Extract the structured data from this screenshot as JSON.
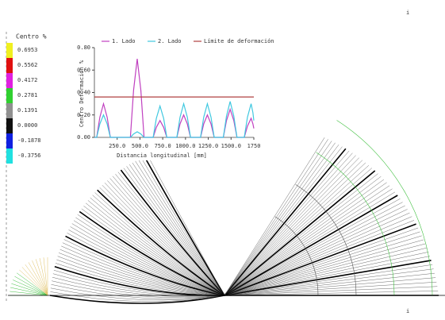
{
  "legend": {
    "title": "Centro %",
    "items": [
      {
        "label": "0.6953",
        "color": "#f0f020"
      },
      {
        "label": "0.5562",
        "color": "#e01010"
      },
      {
        "label": "0.4172",
        "color": "#e020e0"
      },
      {
        "label": "0.2781",
        "color": "#30d030"
      },
      {
        "label": "0.1391",
        "color": "#909090"
      },
      {
        "label": "0.0000",
        "color": "#101010"
      },
      {
        "label": "-0.1878",
        "color": "#1020e0"
      },
      {
        "label": "-0.3756",
        "color": "#20e0e0"
      }
    ]
  },
  "corner_marks": [
    "i",
    "i"
  ],
  "chart_data": {
    "type": "line",
    "xlabel": "Distancia longitudinal [mm]",
    "ylabel": "Centro Deformación %",
    "x": [
      0,
      25,
      60,
      100,
      140,
      175,
      395,
      430,
      470,
      510,
      545,
      645,
      680,
      720,
      760,
      795,
      905,
      940,
      980,
      1020,
      1055,
      1165,
      1200,
      1240,
      1280,
      1315,
      1415,
      1450,
      1490,
      1530,
      1565,
      1645,
      1680,
      1720,
      1740,
      1750
    ],
    "series": [
      {
        "name": "1. Lado",
        "color": "#c040c0",
        "values": [
          0,
          0,
          0.18,
          0.3,
          0.18,
          0,
          0,
          0.42,
          0.7,
          0.42,
          0,
          0,
          0.09,
          0.15,
          0.09,
          0,
          0,
          0.12,
          0.2,
          0.12,
          0,
          0,
          0.12,
          0.2,
          0.12,
          0,
          0,
          0.15,
          0.25,
          0.15,
          0,
          0,
          0.1,
          0.17,
          0.12,
          0.08
        ]
      },
      {
        "name": "2. Lado",
        "color": "#40c8e0",
        "values": [
          0,
          0,
          0.12,
          0.2,
          0.12,
          0,
          0,
          0.03,
          0.05,
          0.03,
          0,
          0,
          0.17,
          0.28,
          0.17,
          0,
          0,
          0.18,
          0.3,
          0.18,
          0,
          0,
          0.18,
          0.3,
          0.18,
          0,
          0,
          0.19,
          0.32,
          0.19,
          0,
          0,
          0.18,
          0.3,
          0.22,
          0.15
        ]
      },
      {
        "name": "Límite de deformación",
        "color": "#b04040",
        "values": [
          0.36,
          0.36,
          0.36,
          0.36,
          0.36,
          0.36,
          0.36,
          0.36,
          0.36,
          0.36,
          0.36,
          0.36,
          0.36,
          0.36,
          0.36,
          0.36,
          0.36,
          0.36,
          0.36,
          0.36,
          0.36,
          0.36,
          0.36,
          0.36,
          0.36,
          0.36,
          0.36,
          0.36,
          0.36,
          0.36,
          0.36,
          0.36,
          0.36,
          0.36,
          0.36,
          0.36
        ]
      }
    ],
    "xlim": [
      0,
      1750
    ],
    "xticks": [
      {
        "value": 250,
        "label": "250.0"
      },
      {
        "value": 500,
        "label": "500.0"
      },
      {
        "value": 750,
        "label": "750.0"
      },
      {
        "value": 1000,
        "label": "1000.0"
      },
      {
        "value": 1250,
        "label": "1250.0"
      },
      {
        "value": 1500,
        "label": "1500.0"
      },
      1750
    ],
    "ylim": [
      0,
      0.8
    ],
    "yticks": [
      {
        "value": 0,
        "label": "0.00"
      },
      {
        "value": 0.2,
        "label": "0.20"
      },
      {
        "value": 0.4,
        "label": "0.40"
      },
      {
        "value": 0.6,
        "label": "0.60"
      },
      {
        "value": 0.8,
        "label": "0.80"
      }
    ]
  }
}
